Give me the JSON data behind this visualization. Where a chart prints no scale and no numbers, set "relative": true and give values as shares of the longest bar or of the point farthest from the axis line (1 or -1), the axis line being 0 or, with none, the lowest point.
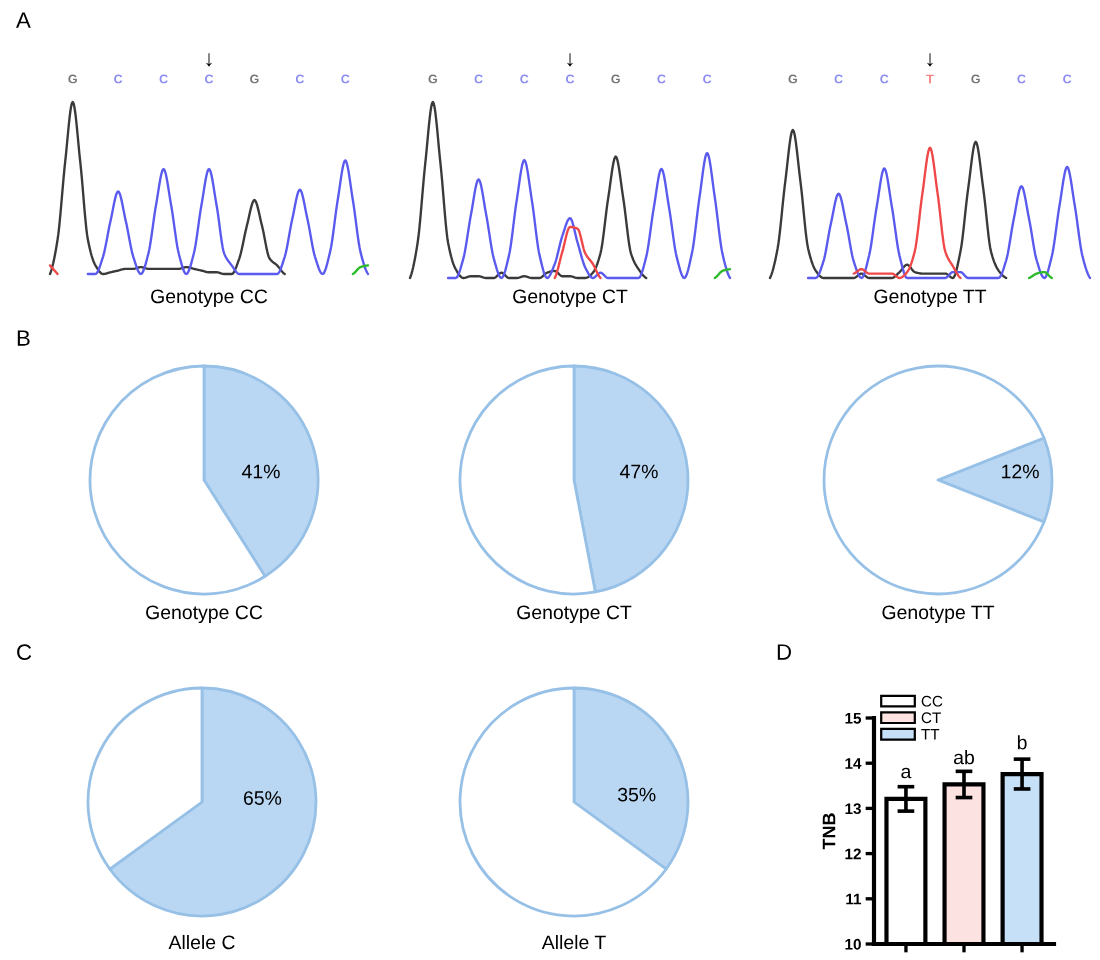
{
  "chart_data": [
    {
      "type": "line",
      "relative": true,
      "subtitle": "A",
      "title": "Genotype CC",
      "annotations": [
        "↓",
        "G",
        "C",
        "C",
        "C",
        "G",
        "C",
        "C"
      ],
      "categories": [
        null,
        null,
        null,
        null,
        null,
        null,
        null,
        null,
        null,
        null,
        null,
        null,
        null,
        null,
        null,
        null,
        null,
        null,
        null,
        null,
        null,
        null,
        null,
        null,
        null,
        null,
        null,
        null,
        null,
        null,
        null,
        null,
        null,
        null,
        null,
        null,
        null,
        null,
        null,
        null,
        null,
        null,
        null
      ],
      "series": [
        {
          "color": "#3a3a3a",
          "values": [
            0,
            0.2,
            0.65,
            1,
            0.65,
            0.2,
            0.05,
            0,
            0.01,
            0.02,
            0.03,
            0.03,
            0.04,
            0.03,
            0.03,
            0.03,
            0.03,
            0.03,
            0.04,
            0.03,
            0.02,
            0.01,
            0.01,
            0,
            0,
            0.09,
            0.28,
            0.43,
            0.28,
            0.09,
            0.05,
            0,
            null,
            null,
            null,
            null,
            null,
            null,
            null,
            null,
            null,
            null,
            null
          ]
        },
        {
          "color": "#5a5aee",
          "values": [
            null,
            null,
            null,
            null,
            null,
            0,
            0,
            0.1,
            0.31,
            0.48,
            0.31,
            0.1,
            0,
            0.12,
            0.4,
            0.61,
            0.4,
            0.12,
            0,
            0.12,
            0.4,
            0.61,
            0.4,
            0.12,
            0.05,
            0,
            0,
            0,
            0,
            0,
            0,
            0.1,
            0.32,
            0.49,
            0.32,
            0.1,
            0,
            0.13,
            0.43,
            0.66,
            0.43,
            0.13,
            0
          ]
        },
        {
          "color": "#f04848",
          "values": [
            0.05,
            0,
            null,
            null,
            null,
            null,
            null,
            null,
            null,
            null,
            null,
            null,
            null,
            null,
            null,
            null,
            null,
            null,
            null,
            null,
            null,
            null,
            null,
            null,
            null,
            null,
            null,
            null,
            null,
            null,
            null,
            null,
            null,
            null,
            null,
            null,
            null,
            null,
            null,
            null,
            null,
            null,
            null
          ]
        },
        {
          "color": "#2cba2c",
          "values": [
            null,
            null,
            null,
            null,
            null,
            null,
            null,
            null,
            null,
            null,
            null,
            null,
            null,
            null,
            null,
            null,
            null,
            null,
            null,
            null,
            null,
            null,
            null,
            null,
            null,
            null,
            null,
            null,
            null,
            null,
            null,
            null,
            null,
            null,
            null,
            null,
            null,
            null,
            null,
            null,
            0,
            0.04,
            0.05
          ]
        }
      ]
    },
    {
      "type": "line",
      "relative": true,
      "title": "Genotype CT",
      "annotations": [
        "↓",
        "G",
        "C",
        "C",
        "C",
        "G",
        "C",
        "C"
      ],
      "categories": [
        null,
        null,
        null,
        null,
        null,
        null,
        null,
        null,
        null,
        null,
        null,
        null,
        null,
        null,
        null,
        null,
        null,
        null,
        null,
        null,
        null,
        null,
        null,
        null,
        null,
        null,
        null,
        null,
        null,
        null,
        null,
        null,
        null,
        null,
        null,
        null,
        null,
        null,
        null,
        null,
        null,
        null,
        null
      ],
      "series": [
        {
          "color": "#3a3a3a",
          "values": [
            0,
            0.2,
            0.65,
            1,
            0.65,
            0.2,
            0.05,
            0,
            0.01,
            0.01,
            0,
            0,
            0.03,
            0,
            0,
            0.01,
            0,
            0,
            0.03,
            0.04,
            0.01,
            0.01,
            0,
            0,
            0.03,
            0.14,
            0.45,
            0.69,
            0.45,
            0.14,
            0.05,
            0,
            null,
            null,
            null,
            null,
            null,
            null,
            null,
            null,
            null,
            null,
            null
          ]
        },
        {
          "color": "#5a5aee",
          "values": [
            null,
            null,
            null,
            null,
            null,
            0,
            0,
            0.11,
            0.36,
            0.56,
            0.36,
            0.11,
            0,
            0.13,
            0.44,
            0.67,
            0.44,
            0.13,
            0,
            0.08,
            0.24,
            0.34,
            0.2,
            0.06,
            0,
            0.03,
            0,
            0,
            0,
            0,
            0,
            0.12,
            0.4,
            0.62,
            0.4,
            0.12,
            0,
            0.14,
            0.46,
            0.71,
            0.46,
            0.14,
            0
          ]
        },
        {
          "color": "#f04848",
          "values": [
            null,
            null,
            null,
            null,
            null,
            null,
            null,
            null,
            null,
            null,
            null,
            null,
            null,
            null,
            null,
            null,
            null,
            null,
            null,
            0,
            0.15,
            0.29,
            0.28,
            0.14,
            0.08,
            0,
            null,
            null,
            null,
            null,
            null,
            null,
            null,
            null,
            null,
            null,
            null,
            null,
            null,
            null,
            null,
            null,
            null
          ]
        },
        {
          "color": "#2cba2c",
          "values": [
            null,
            null,
            null,
            null,
            null,
            null,
            null,
            null,
            null,
            null,
            null,
            null,
            null,
            null,
            null,
            null,
            null,
            null,
            null,
            null,
            null,
            null,
            null,
            null,
            null,
            null,
            null,
            null,
            null,
            null,
            null,
            null,
            null,
            null,
            null,
            null,
            null,
            null,
            null,
            null,
            0,
            0.04,
            0.05
          ]
        }
      ]
    },
    {
      "type": "line",
      "relative": true,
      "title": "Genotype TT",
      "annotations": [
        "↓",
        "G",
        "C",
        "C",
        "T",
        "G",
        "C",
        "C"
      ],
      "categories": [
        null,
        null,
        null,
        null,
        null,
        null,
        null,
        null,
        null,
        null,
        null,
        null,
        null,
        null,
        null,
        null,
        null,
        null,
        null,
        null,
        null,
        null,
        null,
        null,
        null,
        null,
        null,
        null,
        null,
        null,
        null,
        null,
        null,
        null,
        null,
        null,
        null,
        null,
        null,
        null,
        null,
        null,
        null
      ],
      "series": [
        {
          "color": "#3a3a3a",
          "values": [
            0,
            0.2,
            0.65,
            1,
            0.65,
            0.2,
            0.05,
            0,
            0,
            0,
            0,
            0,
            0.03,
            0,
            0,
            0,
            0,
            0.04,
            0.09,
            0.04,
            0.03,
            0.03,
            0.03,
            0.03,
            0,
            0.18,
            0.6,
            0.92,
            0.6,
            0.18,
            0.05,
            0,
            null,
            null,
            null,
            null,
            null,
            null,
            null,
            null,
            null,
            null,
            null
          ]
        },
        {
          "color": "#5a5aee",
          "values": [
            null,
            null,
            null,
            null,
            null,
            0,
            0,
            0.11,
            0.37,
            0.57,
            0.37,
            0.11,
            0,
            0.15,
            0.48,
            0.74,
            0.48,
            0.15,
            0,
            0,
            0,
            0,
            0,
            0,
            0.04,
            0.04,
            0,
            0,
            0,
            0,
            0,
            0.12,
            0.4,
            0.62,
            0.4,
            0.12,
            0,
            0.15,
            0.49,
            0.75,
            0.49,
            0.15,
            0
          ]
        },
        {
          "color": "#f04848",
          "values": [
            null,
            null,
            null,
            null,
            null,
            null,
            null,
            null,
            null,
            null,
            null,
            0.03,
            0.06,
            0.03,
            0.03,
            0.03,
            0.03,
            0,
            0.04,
            0.18,
            0.57,
            0.88,
            0.57,
            0.18,
            0.08,
            0,
            null,
            null,
            null,
            null,
            null,
            null,
            null,
            null,
            null,
            null,
            null,
            null,
            null,
            null,
            null,
            null,
            null
          ]
        },
        {
          "color": "#2cba2c",
          "values": [
            null,
            null,
            null,
            null,
            null,
            null,
            null,
            null,
            null,
            null,
            null,
            null,
            null,
            null,
            null,
            null,
            null,
            null,
            null,
            null,
            null,
            null,
            null,
            null,
            null,
            null,
            null,
            null,
            null,
            null,
            null,
            null,
            null,
            null,
            0,
            0.03,
            0.04,
            0,
            null,
            null,
            null,
            null,
            null
          ]
        }
      ]
    },
    {
      "type": "pie",
      "subtitle": "B",
      "title": "Genotype CC",
      "categories": [
        null,
        null
      ],
      "values": [
        41,
        59
      ],
      "colors": [
        "#b9d7f3",
        "#ffffff"
      ],
      "value_labels": [
        "41%",
        null
      ]
    },
    {
      "type": "pie",
      "title": "Genotype CT",
      "categories": [
        null,
        null
      ],
      "values": [
        47,
        53
      ],
      "colors": [
        "#b9d7f3",
        "#ffffff"
      ],
      "value_labels": [
        "47%",
        null
      ]
    },
    {
      "type": "pie",
      "title": "Genotype TT",
      "categories": [
        null,
        null
      ],
      "values": [
        12,
        88
      ],
      "colors": [
        "#b9d7f3",
        "#ffffff"
      ],
      "value_labels": [
        "12%",
        null
      ]
    },
    {
      "type": "pie",
      "subtitle": "C",
      "title": "Allele C",
      "categories": [
        null,
        null
      ],
      "values": [
        65,
        35
      ],
      "colors": [
        "#b9d7f3",
        "#ffffff"
      ],
      "value_labels": [
        "65%",
        null
      ]
    },
    {
      "type": "pie",
      "title": "Allele T",
      "categories": [
        null,
        null
      ],
      "values": [
        35,
        65
      ],
      "colors": [
        "#b9d7f3",
        "#ffffff"
      ],
      "value_labels": [
        "35%",
        null
      ]
    },
    {
      "type": "bar",
      "subtitle": "D",
      "ylabel": "TNB",
      "categories": [
        null,
        null,
        null
      ],
      "series": [
        {
          "name": "CC",
          "color": "#ffffff",
          "values": [
            13.21,
            null,
            null
          ],
          "errors": [
            0.27,
            null,
            null
          ]
        },
        {
          "name": "CT",
          "color": "#fde2e2",
          "values": [
            null,
            13.53,
            null
          ],
          "errors": [
            null,
            0.29,
            null
          ]
        },
        {
          "name": "TT",
          "color": "#c6e0f7",
          "values": [
            null,
            null,
            13.76
          ],
          "errors": [
            null,
            null,
            0.33
          ]
        }
      ],
      "ylim": [
        10,
        15
      ],
      "yticks": [
        10,
        11,
        12,
        13,
        14,
        15
      ],
      "tick_labels": "y",
      "legend": "top left",
      "annotations": [
        {
          "text": "a",
          "y": 13.58
        },
        {
          "text": "ab",
          "y": 13.89
        },
        {
          "text": "b",
          "y": 14.22
        }
      ]
    }
  ]
}
